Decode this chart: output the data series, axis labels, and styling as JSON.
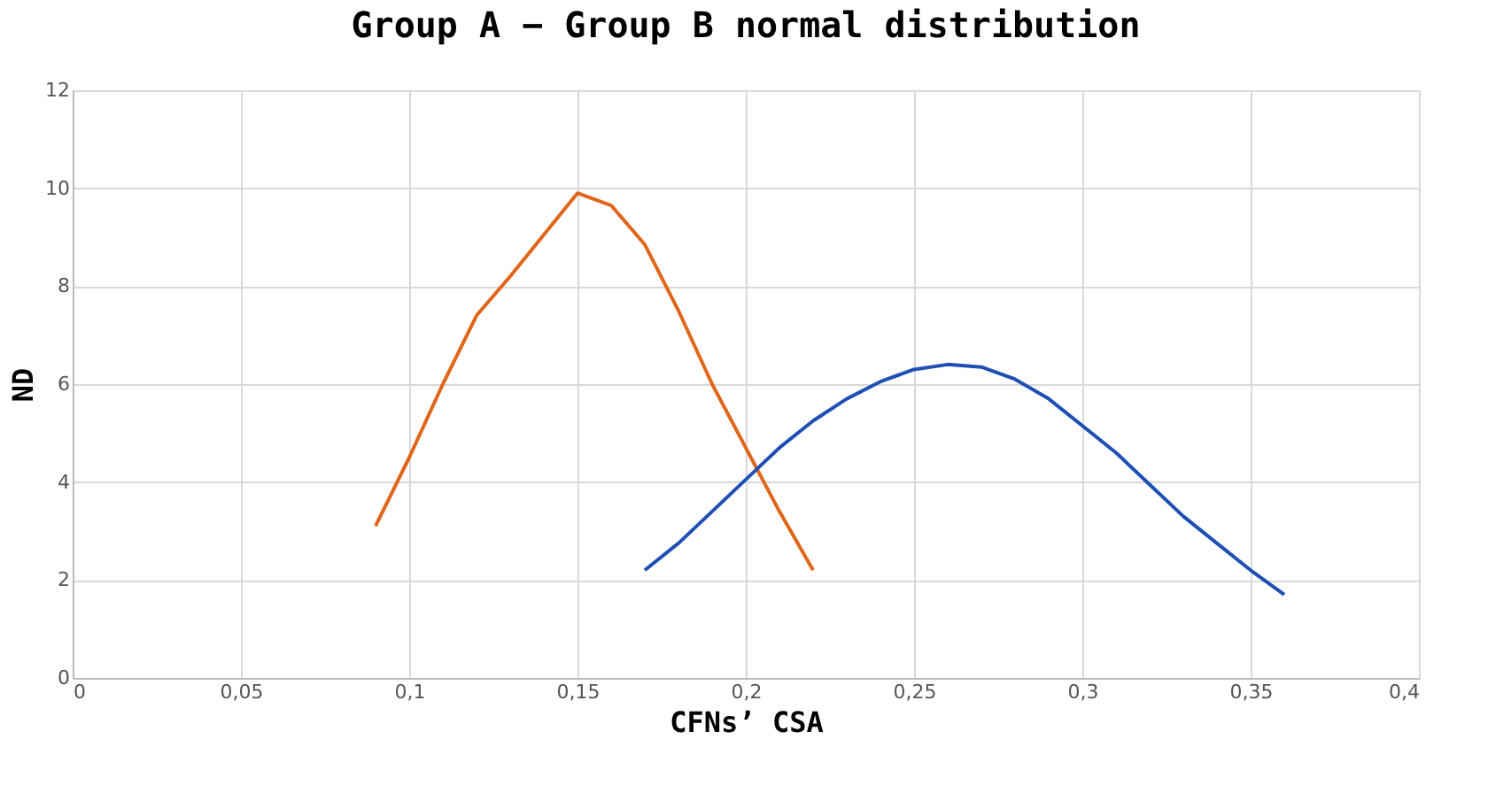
{
  "chart_data": {
    "type": "line",
    "title": "Group A − Group B normal distribution",
    "xlabel": "CFNs’ CSA",
    "ylabel": "ND",
    "xlim": [
      0,
      0.4
    ],
    "xticks": [
      0,
      {
        "value": 0.05,
        "label": "0,05"
      },
      {
        "value": 0.1,
        "label": "0,1"
      },
      {
        "value": 0.15,
        "label": "0,15"
      },
      {
        "value": 0.2,
        "label": "0,2"
      },
      {
        "value": 0.25,
        "label": "0,25"
      },
      {
        "value": 0.3,
        "label": "0,3"
      },
      {
        "value": 0.35,
        "label": "0,35"
      },
      {
        "value": 0.4,
        "label": "0,4"
      }
    ],
    "ylim": [
      0,
      12
    ],
    "yticks": [
      0,
      2,
      4,
      6,
      8,
      10,
      12
    ],
    "grid": true,
    "legend": false,
    "line_style": "solid",
    "marker": "none",
    "series": [
      {
        "color": "#e0661a",
        "x": [
          0.09,
          0.1,
          0.11,
          0.12,
          0.13,
          0.14,
          0.15,
          0.16,
          0.17,
          0.18,
          0.19,
          0.2,
          0.21,
          0.22
        ],
        "values": [
          3.1,
          4.5,
          6.0,
          7.4,
          8.2,
          9.05,
          9.9,
          9.65,
          8.85,
          7.5,
          6.0,
          4.7,
          3.4,
          2.2
        ]
      },
      {
        "color": "#1f4fb4",
        "x": [
          0.17,
          0.18,
          0.19,
          0.2,
          0.21,
          0.22,
          0.23,
          0.24,
          0.25,
          0.26,
          0.27,
          0.28,
          0.29,
          0.3,
          0.31,
          0.32,
          0.33,
          0.34,
          0.35,
          0.36
        ],
        "values": [
          2.2,
          2.75,
          3.4,
          4.05,
          4.7,
          5.25,
          5.7,
          6.05,
          6.3,
          6.4,
          6.35,
          6.1,
          5.7,
          5.15,
          4.6,
          3.95,
          3.3,
          2.75,
          2.2,
          1.7
        ]
      }
    ]
  }
}
